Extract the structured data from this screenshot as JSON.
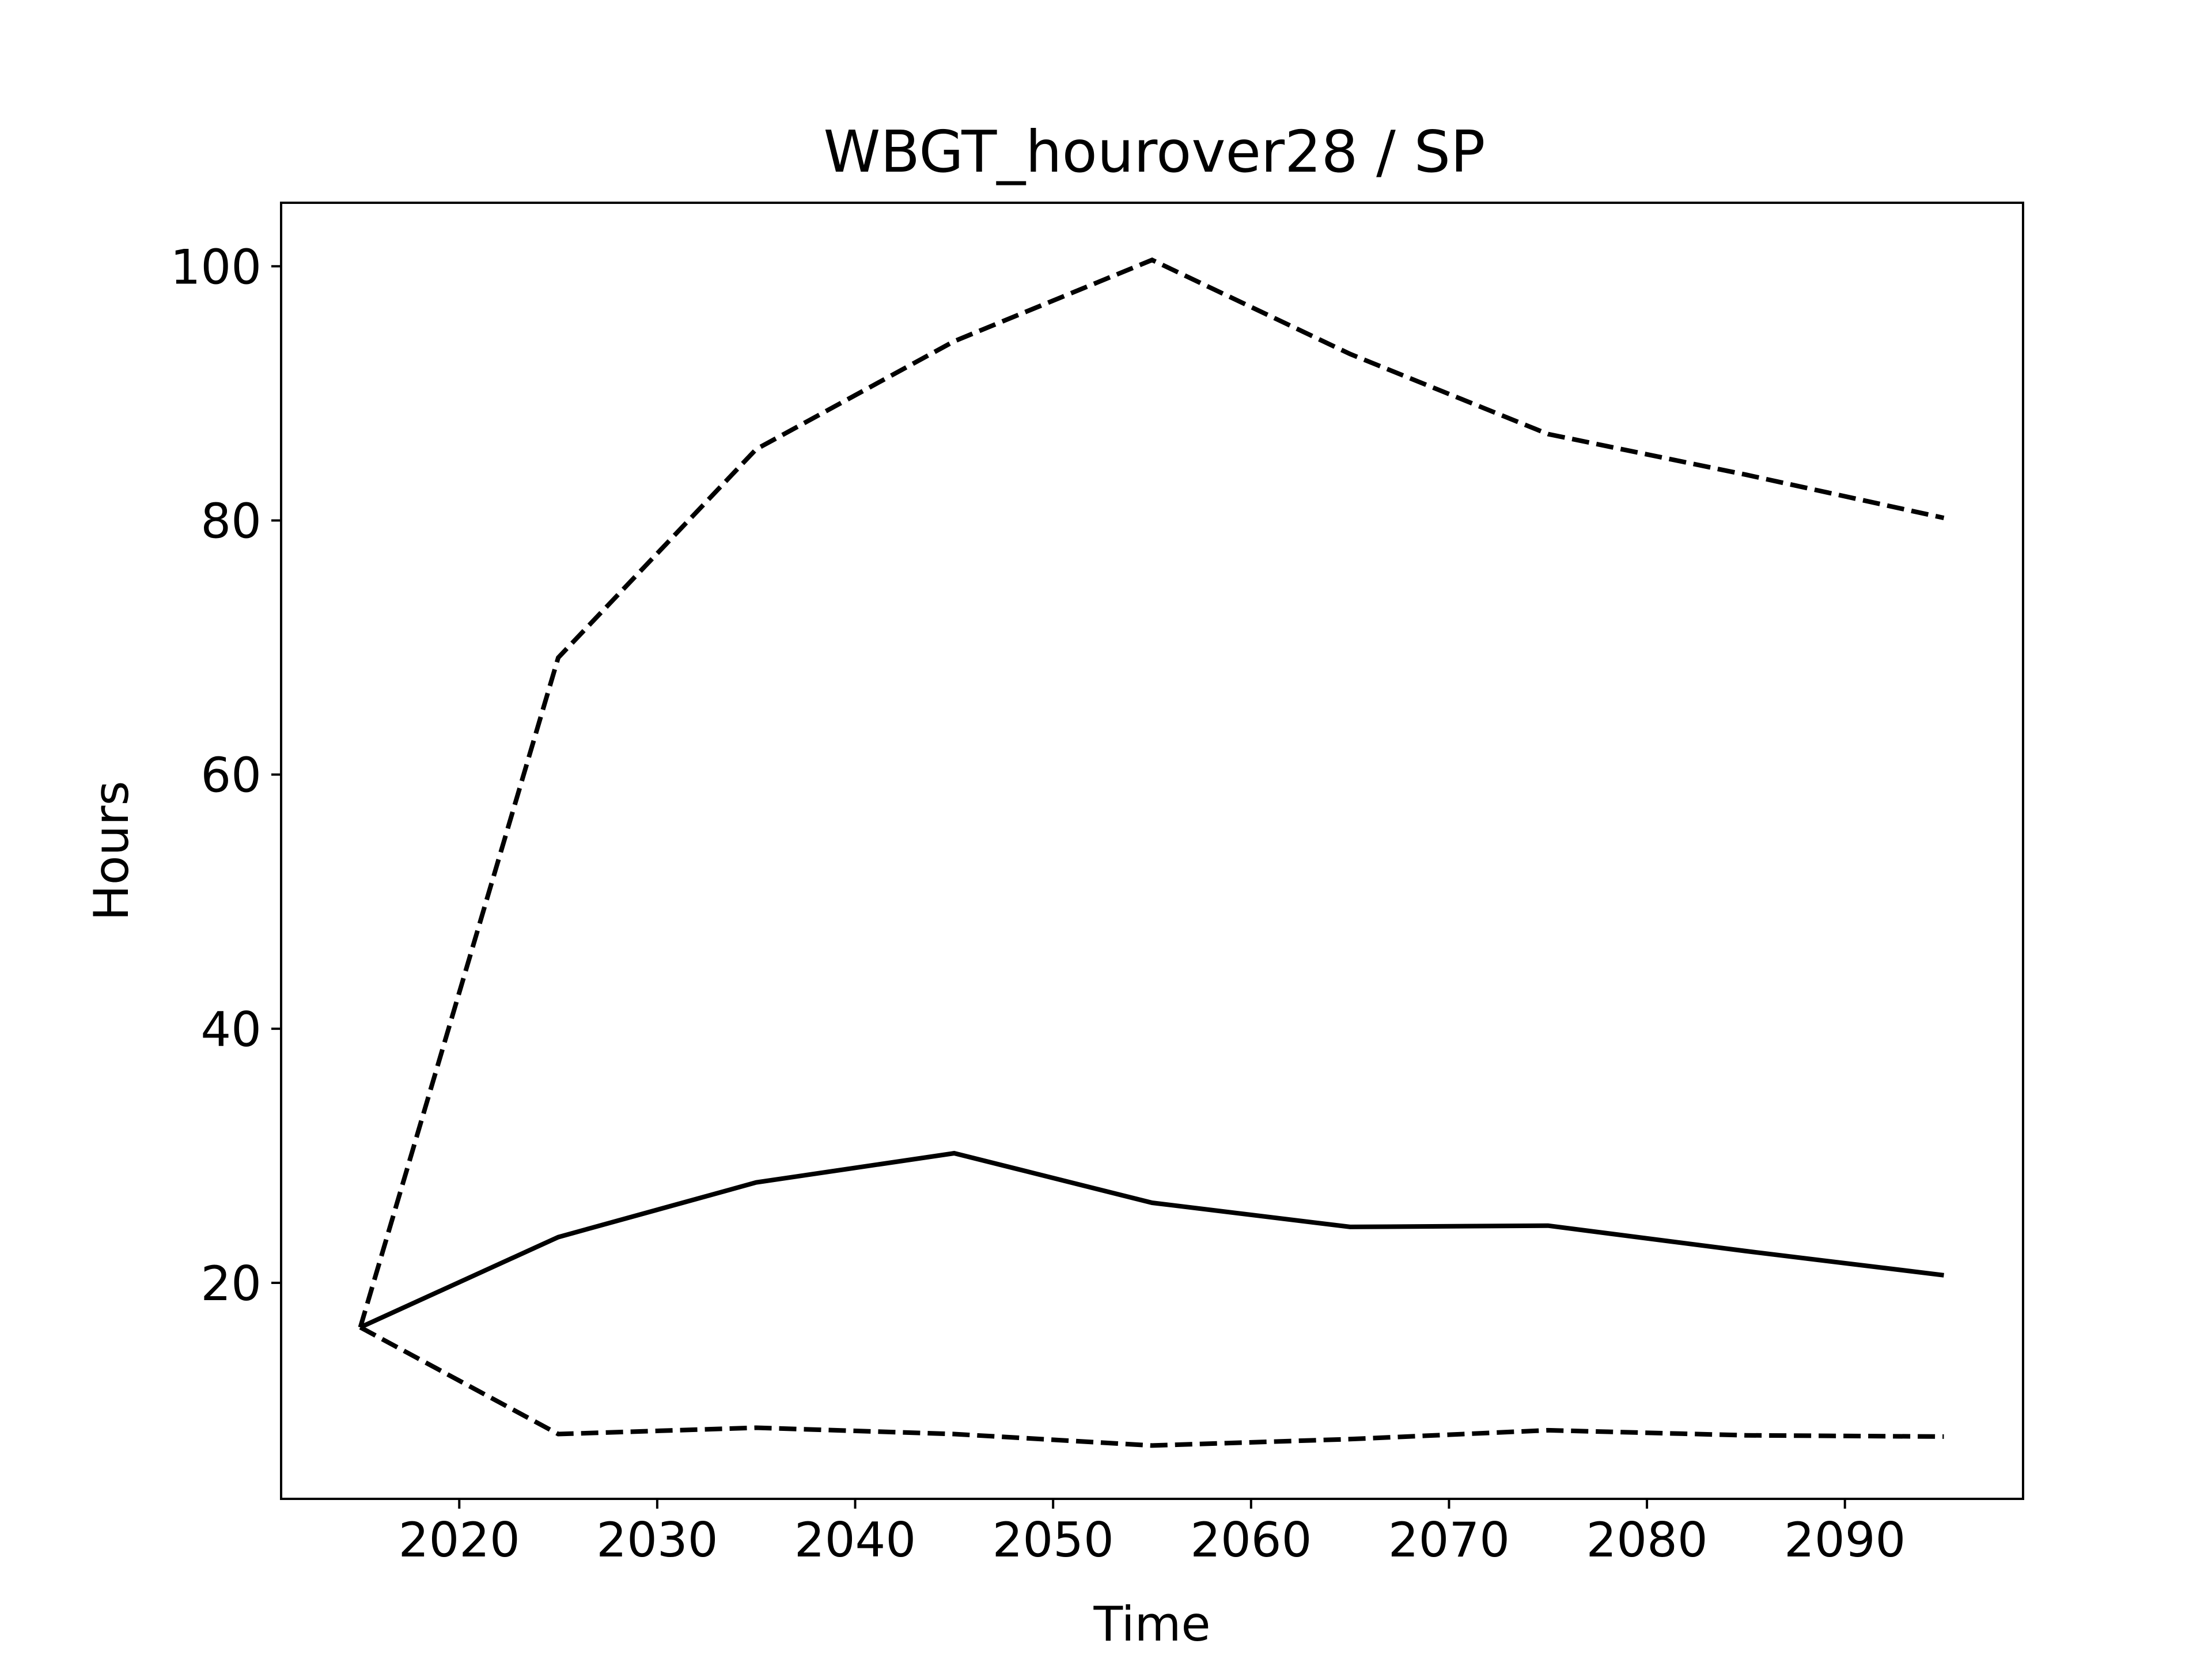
{
  "chart_data": {
    "type": "line",
    "title": "WBGT_hourover28 / SP",
    "xlabel": "Time",
    "ylabel": "Hours",
    "xlim": [
      2011,
      2099
    ],
    "ylim": [
      3.0,
      105.0
    ],
    "xticks": [
      2020,
      2030,
      2040,
      2050,
      2060,
      2070,
      2080,
      2090
    ],
    "yticks": [
      20,
      40,
      60,
      80,
      100
    ],
    "grid": false,
    "legend": "none",
    "x": [
      2015,
      2025,
      2035,
      2045,
      2055,
      2065,
      2075,
      2085,
      2095
    ],
    "series": [
      {
        "style": "solid",
        "color": "#000000",
        "values": [
          16.5,
          23.6,
          27.9,
          30.2,
          26.3,
          24.4,
          24.5,
          22.5,
          20.6
        ]
      },
      {
        "style": "dashed",
        "color": "#000000",
        "values": [
          16.5,
          69.2,
          85.6,
          94.1,
          100.5,
          93.1,
          86.8,
          83.6,
          80.2
        ]
      },
      {
        "style": "dashed",
        "color": "#000000",
        "values": [
          16.5,
          8.1,
          8.6,
          8.1,
          7.2,
          7.7,
          8.4,
          8.0,
          7.9
        ]
      }
    ]
  }
}
